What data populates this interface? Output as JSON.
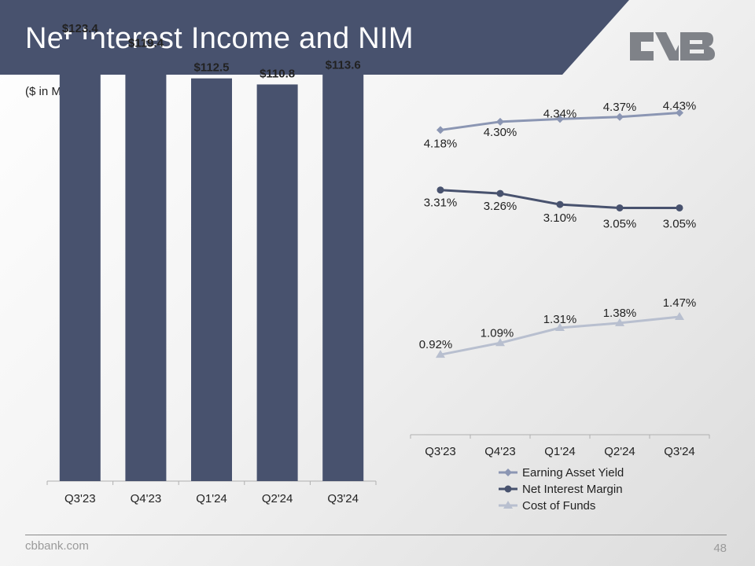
{
  "header": {
    "title": "Net Interest Income and NIM",
    "subtitle": "($ in Millions)"
  },
  "logo": {
    "name": "CVB logo",
    "color": "#7f8288"
  },
  "footer": {
    "website": "cbbank.com",
    "page_number": "48"
  },
  "colors": {
    "banner": "#48526e",
    "bar": "#48526e",
    "earning_asset_yield": "#8b96b3",
    "net_interest_margin": "#48526e",
    "cost_of_funds": "#b8bfcf"
  },
  "chart_data": [
    {
      "type": "bar",
      "title": "Net Interest Income",
      "categories": [
        "Q3'23",
        "Q4'23",
        "Q1'24",
        "Q2'24",
        "Q3'24"
      ],
      "values": [
        123.4,
        119.4,
        112.5,
        110.8,
        113.6
      ],
      "data_labels": [
        "$123.4",
        "$119.4",
        "$112.5",
        "$110.8",
        "$113.6"
      ],
      "ylim": [
        0,
        130
      ],
      "grid": false,
      "xlabel": "",
      "ylabel": ""
    },
    {
      "type": "line",
      "categories": [
        "Q3'23",
        "Q4'23",
        "Q1'24",
        "Q2'24",
        "Q3'24"
      ],
      "series": [
        {
          "name": "Earning Asset Yield",
          "marker": "diamond",
          "values": [
            4.18,
            4.3,
            4.34,
            4.37,
            4.43
          ],
          "labels": [
            "4.18%",
            "4.30%",
            "4.34%",
            "4.37%",
            "4.43%"
          ]
        },
        {
          "name": "Net Interest Margin",
          "marker": "circle",
          "values": [
            3.31,
            3.26,
            3.1,
            3.05,
            3.05
          ],
          "labels": [
            "3.31%",
            "3.26%",
            "3.10%",
            "3.05%",
            "3.05%"
          ]
        },
        {
          "name": "Cost of Funds",
          "marker": "triangle",
          "values": [
            0.92,
            1.09,
            1.31,
            1.38,
            1.47
          ],
          "labels": [
            "0.92%",
            "1.09%",
            "1.31%",
            "1.38%",
            "1.47%"
          ]
        }
      ],
      "legend": "bottom",
      "grid": false,
      "xlabel": "",
      "ylabel": ""
    }
  ]
}
